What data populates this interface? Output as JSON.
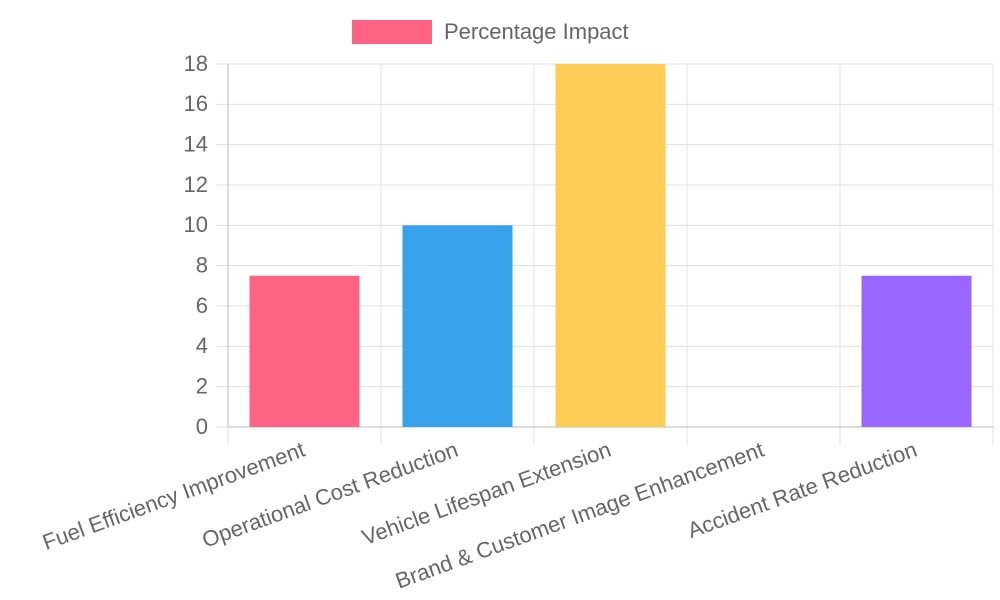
{
  "chart_data": {
    "type": "bar",
    "categories": [
      "Fuel Efficiency Improvement",
      "Operational Cost Reduction",
      "Vehicle Lifespan Extension",
      "Brand & Customer Image Enhancement",
      "Accident Rate Reduction"
    ],
    "series": [
      {
        "name": "Percentage Impact",
        "color": "#ff6384",
        "colors": [
          "#ff6384",
          "#36a2eb",
          "#ffcd56",
          "#4bc0c0",
          "#9966ff"
        ],
        "values": [
          7.5,
          10,
          18,
          0,
          7.5
        ]
      }
    ],
    "ylim": [
      0,
      18
    ],
    "yticks": [
      0,
      2,
      4,
      6,
      8,
      10,
      12,
      14,
      16,
      18
    ],
    "grid": true,
    "legend": "top"
  }
}
